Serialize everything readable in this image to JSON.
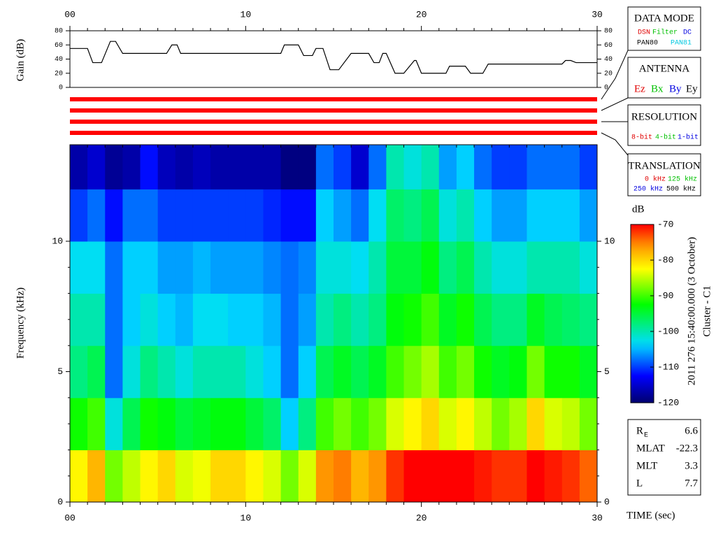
{
  "chart_data": [
    {
      "type": "line",
      "ylabel": "Gain (dB)",
      "color": "#000000",
      "x": [
        0,
        1,
        1.3,
        1.8,
        2.3,
        2.6,
        3,
        5.5,
        5.8,
        6.1,
        6.3,
        12,
        12.2,
        13,
        13.3,
        13.8,
        14,
        14.4,
        14.8,
        15.3,
        16,
        17,
        17.3,
        17.6,
        17.8,
        18,
        18.5,
        19,
        19.6,
        19.7,
        20,
        21.4,
        21.6,
        22.5,
        22.8,
        23.5,
        23.8,
        28,
        28.2,
        28.5,
        28.8,
        30
      ],
      "values": [
        55,
        55,
        35,
        35,
        65,
        65,
        48,
        48,
        60,
        60,
        48,
        48,
        60,
        60,
        45,
        45,
        55,
        55,
        25,
        25,
        48,
        48,
        35,
        35,
        48,
        48,
        20,
        20,
        38,
        38,
        20,
        20,
        30,
        30,
        20,
        20,
        33,
        33,
        38,
        38,
        35,
        35
      ],
      "xlim": [
        0,
        30
      ],
      "xticks": [
        {
          "value": 0,
          "label": "00"
        },
        10,
        20,
        30
      ],
      "ylim": [
        0,
        80
      ],
      "yticks": [
        0,
        20,
        40,
        60,
        80
      ]
    },
    {
      "type": "heatmap",
      "ylabel": "Frequency (kHz)",
      "xlabel": "TIME (sec)",
      "xbins": [
        0,
        1,
        2,
        3,
        4,
        5,
        6,
        7,
        8,
        9,
        10,
        11,
        12,
        13,
        14,
        15,
        16,
        17,
        18,
        19,
        20,
        21,
        22,
        23,
        24,
        25,
        26,
        27,
        28,
        29,
        30
      ],
      "ybins": [
        0,
        2,
        4,
        6,
        8,
        10,
        12,
        13.7
      ],
      "z": [
        [
          -82,
          -92,
          -98,
          -100,
          -103,
          -110,
          -117
        ],
        [
          -78,
          -90,
          -96,
          -100,
          -103,
          -108,
          -115
        ],
        [
          -88,
          -102,
          -108,
          -108,
          -108,
          -112,
          -118
        ],
        [
          -85,
          -96,
          -102,
          -104,
          -104,
          -108,
          -117
        ],
        [
          -82,
          -92,
          -98,
          -102,
          -104,
          -108,
          -112
        ],
        [
          -80,
          -93,
          -100,
          -104,
          -106,
          -110,
          -116
        ],
        [
          -84,
          -95,
          -102,
          -105,
          -106,
          -110,
          -117
        ],
        [
          -83,
          -94,
          -100,
          -103,
          -105,
          -110,
          -116
        ],
        [
          -80,
          -93,
          -100,
          -103,
          -106,
          -110,
          -117
        ],
        [
          -80,
          -93,
          -100,
          -104,
          -106,
          -110,
          -117
        ],
        [
          -82,
          -95,
          -102,
          -104,
          -106,
          -110,
          -117
        ],
        [
          -84,
          -97,
          -104,
          -105,
          -107,
          -111,
          -117
        ],
        [
          -88,
          -104,
          -108,
          -108,
          -108,
          -112,
          -119
        ],
        [
          -84,
          -98,
          -104,
          -106,
          -107,
          -112,
          -119
        ],
        [
          -76,
          -90,
          -96,
          -100,
          -102,
          -104,
          -108
        ],
        [
          -75,
          -88,
          -94,
          -98,
          -102,
          -106,
          -110
        ],
        [
          -78,
          -90,
          -96,
          -100,
          -103,
          -108,
          -115
        ],
        [
          -76,
          -88,
          -94,
          -98,
          -100,
          -103,
          -108
        ],
        [
          -72,
          -84,
          -90,
          -93,
          -95,
          -97,
          -100
        ],
        [
          -70,
          -82,
          -88,
          -92,
          -95,
          -98,
          -102
        ],
        [
          -70,
          -80,
          -86,
          -90,
          -93,
          -96,
          -100
        ],
        [
          -70,
          -84,
          -90,
          -94,
          -98,
          -102,
          -106
        ],
        [
          -70,
          -82,
          -88,
          -92,
          -96,
          -100,
          -104
        ],
        [
          -71,
          -85,
          -92,
          -96,
          -100,
          -104,
          -108
        ],
        [
          -72,
          -88,
          -94,
          -98,
          -102,
          -106,
          -110
        ],
        [
          -72,
          -86,
          -93,
          -98,
          -102,
          -106,
          -110
        ],
        [
          -70,
          -80,
          -88,
          -94,
          -100,
          -104,
          -108
        ],
        [
          -71,
          -84,
          -92,
          -96,
          -100,
          -104,
          -108
        ],
        [
          -72,
          -85,
          -92,
          -97,
          -100,
          -104,
          -108
        ],
        [
          -74,
          -88,
          -94,
          -98,
          -102,
          -106,
          -110
        ]
      ],
      "xlim": [
        0,
        30
      ],
      "xticks": [
        {
          "value": 0,
          "label": "00"
        },
        10,
        20,
        30
      ],
      "ylim": [
        0,
        13.7
      ],
      "yticks": [
        0,
        5,
        10
      ],
      "colorbar": {
        "label": "dB",
        "lim": [
          -120,
          -70
        ],
        "ticks": [
          -70,
          -80,
          -90,
          -100,
          -110,
          -120
        ]
      }
    }
  ],
  "panels": {
    "data_mode": {
      "title": "DATA MODE",
      "items": [
        "DSN",
        "Filter",
        "DC",
        "PAN80",
        "PAN81"
      ]
    },
    "antenna": {
      "title": "ANTENNA",
      "items": [
        "Ez",
        "Bx",
        "By",
        "Ey"
      ]
    },
    "resolution": {
      "title": "RESOLUTION",
      "items": [
        "8-bit",
        "4-bit",
        "1-bit"
      ]
    },
    "translation": {
      "title": "TRANSLATION",
      "items": [
        "0 kHz",
        "125 kHz",
        "250 kHz",
        "500 kHz"
      ]
    }
  },
  "timestamp": "2011 276 15:40:00.000 (3 October)",
  "spacecraft": "Cluster - C1",
  "info": [
    {
      "label": "R",
      "sub": "E",
      "value": 6.6
    },
    {
      "label": "MLAT",
      "value": -22.3
    },
    {
      "label": "MLT",
      "value": 3.3
    },
    {
      "label": "L",
      "value": 7.7
    }
  ]
}
